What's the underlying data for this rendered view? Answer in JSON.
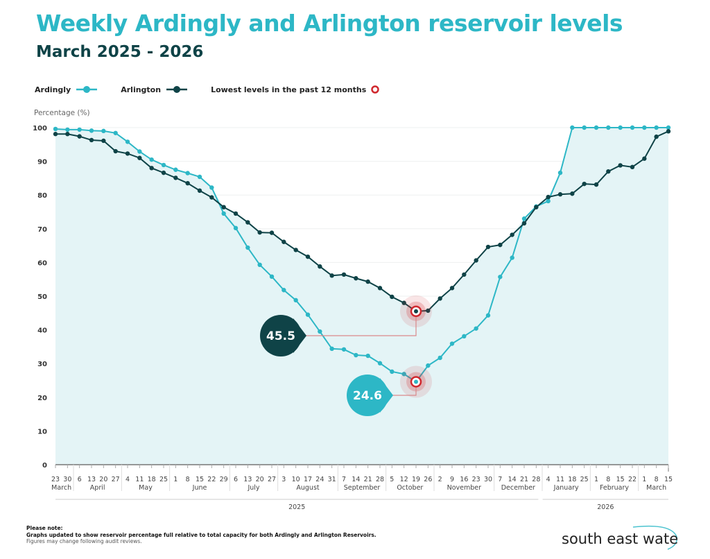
{
  "header": {
    "title": "Weekly Ardingly and Arlington reservoir levels",
    "subtitle": "March 2025 - 2026"
  },
  "legend": {
    "ardingly": "Ardingly",
    "arlington": "Arlington",
    "lowest": "Lowest levels in the past 12 months"
  },
  "colors": {
    "ardingly": "#2db7c6",
    "arlington": "#0f4347",
    "lowest": "#d0282e",
    "fill": "#e4f4f6",
    "title": "#2db7c6"
  },
  "chart_data": {
    "type": "line",
    "ylabel": "Percentage (%)",
    "ylim": [
      0,
      100
    ],
    "yticks": [
      0,
      10,
      20,
      30,
      40,
      50,
      60,
      70,
      80,
      90,
      100
    ],
    "grid": true,
    "legend_position": "top-left",
    "x_day_labels": [
      "23",
      "30",
      "6",
      "13",
      "20",
      "27",
      "4",
      "11",
      "18",
      "25",
      "1",
      "8",
      "15",
      "22",
      "29",
      "6",
      "13",
      "20",
      "27",
      "3",
      "10",
      "17",
      "24",
      "31",
      "7",
      "14",
      "21",
      "28",
      "5",
      "12",
      "19",
      "26",
      "2",
      "9",
      "16",
      "23",
      "30",
      "7",
      "14",
      "21",
      "28",
      "4",
      "11",
      "18",
      "25",
      "1",
      "8",
      "15",
      "22",
      "1",
      "8",
      "15"
    ],
    "months": [
      {
        "label": "March",
        "start": 0,
        "end": 1
      },
      {
        "label": "April",
        "start": 2,
        "end": 5
      },
      {
        "label": "May",
        "start": 6,
        "end": 9
      },
      {
        "label": "June",
        "start": 10,
        "end": 14
      },
      {
        "label": "July",
        "start": 15,
        "end": 18
      },
      {
        "label": "August",
        "start": 19,
        "end": 23
      },
      {
        "label": "September",
        "start": 24,
        "end": 27
      },
      {
        "label": "October",
        "start": 28,
        "end": 31
      },
      {
        "label": "November",
        "start": 32,
        "end": 36
      },
      {
        "label": "December",
        "start": 37,
        "end": 40
      },
      {
        "label": "January",
        "start": 41,
        "end": 44
      },
      {
        "label": "February",
        "start": 45,
        "end": 48
      },
      {
        "label": "March",
        "start": 49,
        "end": 51
      }
    ],
    "years": [
      {
        "label": "2025",
        "start": 0,
        "end": 40
      },
      {
        "label": "2026",
        "start": 41,
        "end": 51
      }
    ],
    "series": [
      {
        "name": "Ardingly",
        "values": [
          99.6,
          99.4,
          99.4,
          99.1,
          99.0,
          98.4,
          95.8,
          92.9,
          90.5,
          88.9,
          87.5,
          86.5,
          85.4,
          82.2,
          74.5,
          70.2,
          64.4,
          59.3,
          55.8,
          51.8,
          48.8,
          44.5,
          39.5,
          34.4,
          34.2,
          32.5,
          32.3,
          30.1,
          27.6,
          26.9,
          24.6,
          29.4,
          31.7,
          35.9,
          38.1,
          40.4,
          44.3,
          55.7,
          61.4,
          73.0,
          76.6,
          78.2,
          86.6,
          100,
          100,
          100,
          100,
          100,
          100,
          100,
          100,
          100
        ]
      },
      {
        "name": "Arlington",
        "values": [
          98.1,
          98.1,
          97.4,
          96.3,
          96.1,
          93.0,
          92.3,
          91.0,
          88.0,
          86.6,
          85.1,
          83.5,
          81.3,
          79.3,
          76.4,
          74.5,
          71.9,
          68.9,
          68.8,
          66.1,
          63.7,
          61.7,
          58.8,
          56.1,
          56.4,
          55.3,
          54.3,
          52.4,
          49.8,
          48.0,
          45.5,
          45.7,
          49.3,
          52.4,
          56.4,
          60.6,
          64.6,
          65.2,
          68.2,
          71.6,
          76.4,
          79.4,
          80.2,
          80.4,
          83.3,
          83.1,
          87.0,
          88.8,
          88.3,
          90.8,
          97.3,
          98.9
        ]
      }
    ],
    "annotations": [
      {
        "series": "Arlington",
        "index": 30,
        "label": "45.5"
      },
      {
        "series": "Ardingly",
        "index": 30,
        "label": "24.6"
      }
    ]
  },
  "note": {
    "heading": "Please note:",
    "line1": "Graphs updated to show reservoir percentage full relative to total capacity for both Ardingly and Arlington Reservoirs.",
    "line2": "Figures may change following audit reviews."
  },
  "logo": {
    "text": "south east water"
  }
}
